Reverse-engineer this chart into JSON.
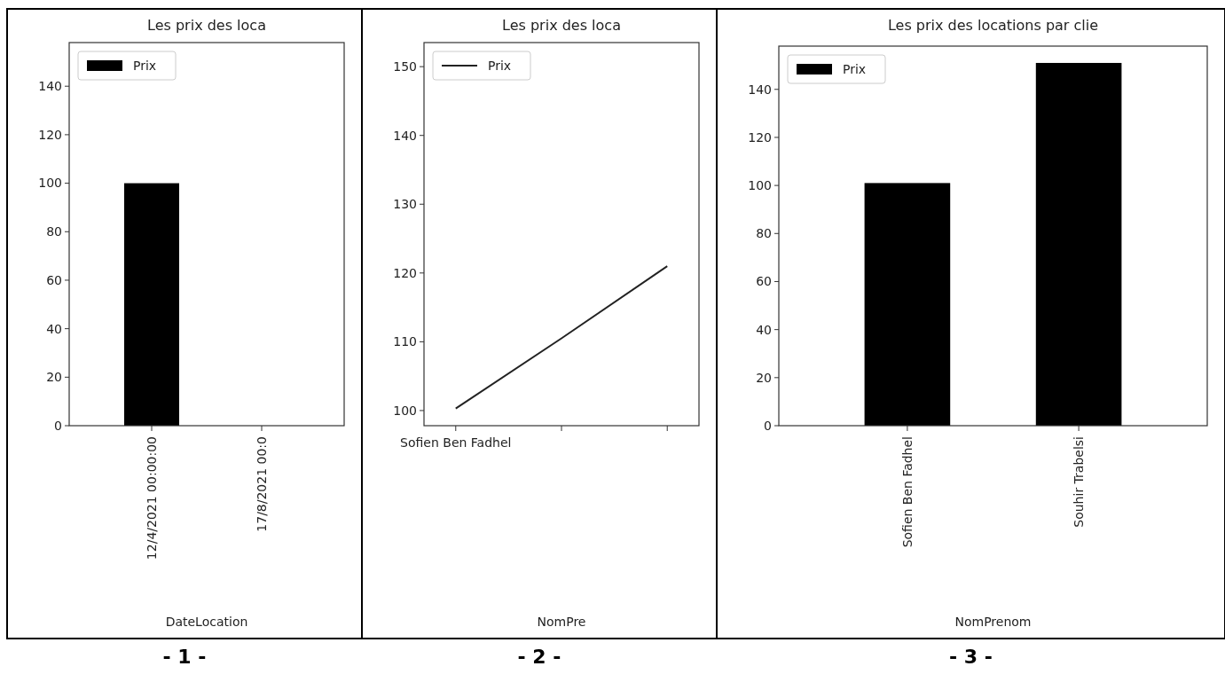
{
  "chart_data": [
    {
      "type": "bar",
      "title": "Les prix des loca",
      "xlabel": "DateLocation",
      "categories": [
        "12/4/2021 00:00:00",
        "17/8/2021 00:0"
      ],
      "series": [
        {
          "name": "Prix",
          "color": "#000000",
          "values": [
            100,
            null
          ]
        }
      ],
      "ylim": [
        0,
        158
      ],
      "yticks": [
        0,
        20,
        40,
        60,
        80,
        100,
        120,
        140
      ],
      "legend": "top left",
      "annotations": [
        "- 1 -"
      ]
    },
    {
      "type": "line",
      "title": "Les prix des loca",
      "xlabel": "NomPre",
      "categories": [
        "Sofien Ben Fadhel",
        null,
        null
      ],
      "series": [
        {
          "name": "Prix",
          "color": "#222222",
          "values": [
            100.3,
            110.5,
            121
          ]
        }
      ],
      "ylim": [
        97.8,
        153.5
      ],
      "yticks": [
        100,
        110,
        120,
        130,
        140,
        150
      ],
      "legend": "top left",
      "annotations": [
        "- 2 -"
      ]
    },
    {
      "type": "bar",
      "title": "Les prix des locations par clie",
      "xlabel": "NomPrenom",
      "categories": [
        "Sofien Ben Fadhel",
        "Souhir Trabelsi"
      ],
      "series": [
        {
          "name": "Prix",
          "color": "#000000",
          "values": [
            101,
            151
          ]
        }
      ],
      "ylim": [
        0,
        158
      ],
      "yticks": [
        0,
        20,
        40,
        60,
        80,
        100,
        120,
        140
      ],
      "legend": "top left",
      "annotations": [
        "- 3 -"
      ]
    }
  ]
}
